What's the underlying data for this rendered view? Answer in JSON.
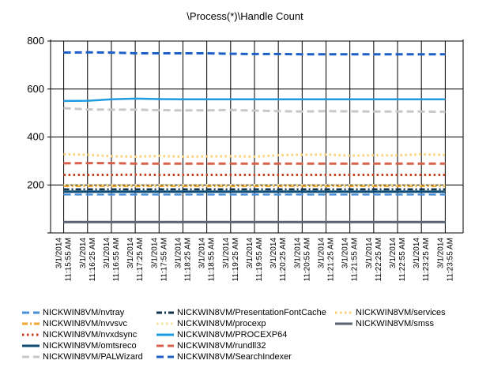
{
  "chart_data": {
    "type": "line",
    "title": "\\Process(*)\\Handle Count",
    "xlabel": "",
    "ylabel": "",
    "ylim": [
      0,
      800
    ],
    "yticks": [
      200,
      400,
      600,
      800
    ],
    "grid": true,
    "legend_position": "bottom",
    "x": [
      "3/1/2014 11:15:55 AM",
      "3/1/2014 11:16:25 AM",
      "3/1/2014 11:16:55 AM",
      "3/1/2014 11:17:25 AM",
      "3/1/2014 11:17:55 AM",
      "3/1/2014 11:18:25 AM",
      "3/1/2014 11:18:55 AM",
      "3/1/2014 11:19:25 AM",
      "3/1/2014 11:19:55 AM",
      "3/1/2014 11:20:25 AM",
      "3/1/2014 11:20:55 AM",
      "3/1/2014 11:21:25 AM",
      "3/1/2014 11:21:55 AM",
      "3/1/2014 11:22:25 AM",
      "3/1/2014 11:22:55 AM",
      "3/1/2014 11:23:25 AM",
      "3/1/2014 11:23:55 AM"
    ],
    "series": [
      {
        "name": "NICKWIN8VM/nvtray",
        "color": "#4a8fd8",
        "dash": "long",
        "width": 2.5,
        "values": [
          160,
          160,
          160,
          160,
          160,
          160,
          160,
          160,
          160,
          160,
          160,
          160,
          160,
          160,
          160,
          160,
          160
        ]
      },
      {
        "name": "NICKWIN8VM/nvvsvc",
        "color": "#f0a830",
        "dash": "dashdot",
        "width": 2.5,
        "values": [
          195,
          195,
          195,
          195,
          195,
          195,
          195,
          195,
          195,
          195,
          195,
          195,
          195,
          195,
          195,
          195,
          195
        ]
      },
      {
        "name": "NICKWIN8VM/nvxdsync",
        "color": "#c8401e",
        "dash": "dot",
        "width": 3,
        "values": [
          242,
          242,
          242,
          243,
          242,
          242,
          242,
          242,
          242,
          242,
          242,
          242,
          242,
          242,
          242,
          242,
          242
        ]
      },
      {
        "name": "NICKWIN8VM/omtsreco",
        "color": "#0f4c75",
        "dash": "solid",
        "width": 3,
        "values": [
          172,
          172,
          172,
          172,
          172,
          172,
          172,
          172,
          172,
          172,
          172,
          172,
          172,
          172,
          172,
          172,
          172
        ]
      },
      {
        "name": "NICKWIN8VM/PALWizard",
        "color": "#c8c8c8",
        "dash": "long",
        "width": 3,
        "values": [
          520,
          515,
          514,
          514,
          512,
          511,
          511,
          513,
          510,
          508,
          506,
          508,
          507,
          506,
          506,
          506,
          505
        ]
      },
      {
        "name": "NICKWIN8VM/PresentationFontCache",
        "color": "#12324a",
        "dash": "dashdot",
        "width": 2.5,
        "values": [
          182,
          182,
          182,
          182,
          182,
          182,
          182,
          182,
          182,
          182,
          182,
          182,
          182,
          182,
          182,
          182,
          182
        ]
      },
      {
        "name": "NICKWIN8VM/procexp",
        "color": "#f5e39a",
        "dash": "dot",
        "width": 2.5,
        "values": [
          200,
          200,
          200,
          200,
          200,
          200,
          200,
          200,
          200,
          200,
          200,
          200,
          200,
          200,
          200,
          200,
          200
        ]
      },
      {
        "name": "NICKWIN8VM/PROCEXP64",
        "color": "#1f9be0",
        "dash": "solid",
        "width": 2.5,
        "values": [
          550,
          551,
          557,
          560,
          558,
          557,
          557,
          557,
          557,
          557,
          557,
          557,
          557,
          557,
          557,
          557,
          557
        ]
      },
      {
        "name": "NICKWIN8VM/rundll32",
        "color": "#d9604a",
        "dash": "long",
        "width": 3,
        "values": [
          290,
          291,
          291,
          289,
          289,
          289,
          289,
          289,
          289,
          289,
          289,
          289,
          289,
          289,
          289,
          289,
          289
        ]
      },
      {
        "name": "NICKWIN8VM/SearchIndexer",
        "color": "#1d5fc4",
        "dash": "long",
        "width": 3,
        "values": [
          752,
          753,
          752,
          749,
          749,
          749,
          749,
          747,
          746,
          746,
          745,
          745,
          745,
          745,
          745,
          745,
          745
        ]
      },
      {
        "name": "NICKWIN8VM/services",
        "color": "#fbd07a",
        "dash": "dot",
        "width": 3,
        "values": [
          328,
          326,
          320,
          318,
          321,
          318,
          319,
          320,
          318,
          324,
          326,
          327,
          322,
          324,
          323,
          328,
          325
        ]
      },
      {
        "name": "NICKWIN8VM/smss",
        "color": "#5a6470",
        "dash": "solid",
        "width": 3,
        "values": [
          45,
          45,
          45,
          45,
          45,
          45,
          45,
          45,
          45,
          45,
          45,
          45,
          45,
          45,
          45,
          45,
          45
        ]
      }
    ]
  }
}
